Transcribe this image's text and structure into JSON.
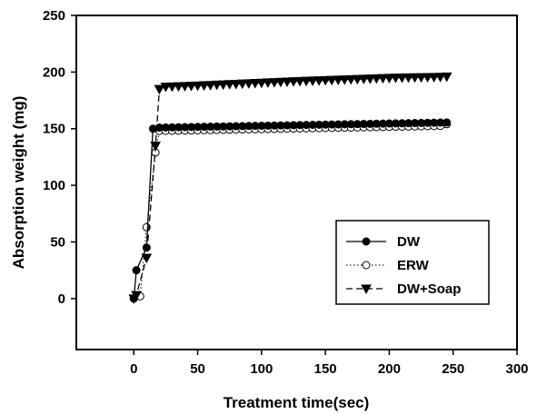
{
  "chart_data": {
    "type": "line",
    "xlabel": "Treatment time(sec)",
    "ylabel": "Absorption weight (mg)",
    "xlim": [
      -45,
      300
    ],
    "ylim": [
      -45,
      250
    ],
    "xticks": [
      "0",
      "50",
      "100",
      "150",
      "200",
      "250",
      "300"
    ],
    "yticks": [
      "0",
      "50",
      "100",
      "150",
      "200",
      "250"
    ],
    "grid": false,
    "legend_position": "lower-right",
    "series": [
      {
        "name": "DW",
        "marker": "filled-circle",
        "line_style": "solid",
        "x": [
          0,
          2,
          10,
          15,
          20,
          25,
          30,
          35,
          40,
          45,
          50,
          55,
          60,
          65,
          70,
          75,
          80,
          85,
          90,
          95,
          100,
          105,
          110,
          115,
          120,
          125,
          130,
          135,
          140,
          145,
          150,
          155,
          160,
          165,
          170,
          175,
          180,
          185,
          190,
          195,
          200,
          205,
          210,
          215,
          220,
          225,
          230,
          235,
          240,
          245
        ],
        "y": [
          0,
          25,
          45,
          150,
          151,
          151.1,
          151.2,
          151.3,
          151.4,
          151.5,
          151.6,
          151.7,
          151.8,
          151.9,
          152,
          152.1,
          152.2,
          152.3,
          152.4,
          152.5,
          152.6,
          152.7,
          152.8,
          152.9,
          153,
          153.1,
          153.2,
          153.3,
          153.4,
          153.5,
          153.6,
          153.7,
          153.8,
          153.9,
          154,
          154.1,
          154.2,
          154.3,
          154.4,
          154.5,
          154.6,
          154.7,
          154.8,
          154.9,
          155,
          155.1,
          155.2,
          155.3,
          155.4,
          155.5
        ]
      },
      {
        "name": "ERW",
        "marker": "open-circle",
        "line_style": "dotted",
        "x": [
          0,
          5,
          10,
          17,
          20,
          25,
          30,
          35,
          40,
          45,
          50,
          55,
          60,
          65,
          70,
          75,
          80,
          85,
          90,
          95,
          100,
          105,
          110,
          115,
          120,
          125,
          130,
          135,
          140,
          145,
          150,
          155,
          160,
          165,
          170,
          175,
          180,
          185,
          190,
          195,
          200,
          205,
          210,
          215,
          220,
          225,
          230,
          235,
          240,
          245
        ],
        "y": [
          0,
          2,
          63,
          129,
          148,
          148.1,
          148.2,
          148.3,
          148.4,
          148.5,
          148.6,
          148.7,
          148.8,
          148.9,
          149,
          149.1,
          149.2,
          149.3,
          149.4,
          149.5,
          149.6,
          149.7,
          149.8,
          149.9,
          150,
          150.1,
          150.2,
          150.3,
          150.4,
          150.5,
          150.6,
          150.7,
          150.8,
          150.9,
          151,
          151.1,
          151.2,
          151.3,
          151.4,
          151.5,
          151.6,
          151.7,
          151.8,
          151.9,
          152,
          152.1,
          152.2,
          152.3,
          152.4,
          154
        ]
      },
      {
        "name": "DW+Soap",
        "marker": "filled-triangle-down",
        "line_style": "dashed",
        "x": [
          0,
          2,
          10,
          17,
          20,
          25,
          30,
          35,
          40,
          45,
          50,
          55,
          60,
          65,
          70,
          75,
          80,
          85,
          90,
          95,
          100,
          105,
          110,
          115,
          120,
          125,
          130,
          135,
          140,
          145,
          150,
          155,
          160,
          165,
          170,
          175,
          180,
          185,
          190,
          195,
          200,
          205,
          210,
          215,
          220,
          225,
          230,
          235,
          240,
          245
        ],
        "y": [
          0,
          3,
          36,
          135,
          185,
          187,
          187.2,
          187.4,
          187.6,
          187.8,
          188,
          188.3,
          188.5,
          188.8,
          189,
          189.3,
          189.5,
          189.8,
          190,
          190.3,
          190.5,
          190.8,
          191,
          191.3,
          191.5,
          191.8,
          192,
          192.2,
          192.4,
          192.6,
          192.8,
          193,
          193.2,
          193.4,
          193.6,
          193.8,
          194,
          194.2,
          194.4,
          194.6,
          194.8,
          195,
          195.1,
          195.2,
          195.3,
          195.4,
          195.5,
          195.6,
          195.7,
          196
        ]
      }
    ]
  }
}
